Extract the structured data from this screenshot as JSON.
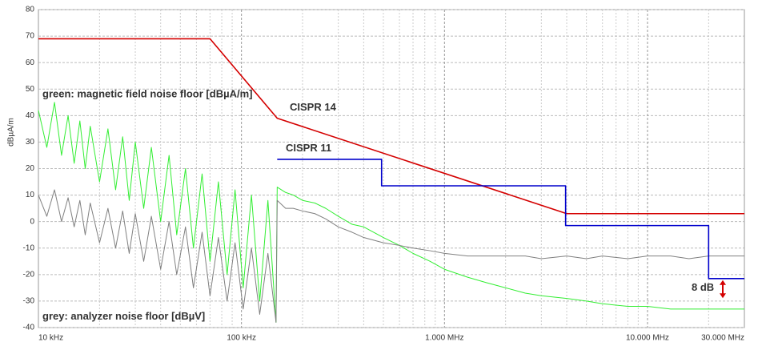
{
  "chart_data": {
    "type": "line",
    "y_label": "dBµA/m",
    "xscale": "log",
    "xlim": [
      10,
      30000
    ],
    "xticks": [
      {
        "value": 10,
        "label": "10 kHz"
      },
      {
        "value": 100,
        "label": "100 kHz"
      },
      {
        "value": 1000,
        "label": "1.000 MHz"
      },
      {
        "value": 10000,
        "label": "10.000 MHz"
      },
      {
        "value": 30000,
        "label": "30.000 MHz"
      }
    ],
    "ylim": [
      -40,
      80
    ],
    "yticks": [
      -40,
      -30,
      -20,
      -10,
      0,
      10,
      20,
      30,
      40,
      50,
      60,
      70,
      80
    ],
    "grid": true,
    "series": [
      {
        "color": "#33ee33",
        "x": [
          10,
          11,
          12,
          13,
          14,
          15,
          16,
          17,
          18,
          20,
          22,
          24,
          26,
          28,
          30,
          33,
          36,
          40,
          44,
          48,
          53,
          58,
          64,
          70,
          77,
          85,
          93,
          102,
          112,
          123,
          135,
          148,
          150,
          165,
          180,
          200,
          230,
          260,
          300,
          350,
          400,
          500,
          600,
          700,
          850,
          1000,
          1300,
          1600,
          2000,
          2500,
          3000,
          4000,
          5000,
          6000,
          8000,
          10000,
          13000,
          16000,
          20000,
          25000,
          30000
        ],
        "values": [
          42,
          28,
          45,
          25,
          40,
          22,
          38,
          20,
          36,
          15,
          35,
          12,
          32,
          8,
          30,
          5,
          28,
          0,
          25,
          -5,
          20,
          -10,
          18,
          -15,
          15,
          -20,
          12,
          -25,
          10,
          -30,
          8,
          -38,
          13,
          11,
          10,
          8,
          7,
          5,
          2,
          -1,
          -2,
          -6,
          -9,
          -12,
          -15,
          -18,
          -21,
          -23,
          -25,
          -27,
          -28,
          -29,
          -30,
          -31,
          -32,
          -32,
          -33,
          -33,
          -33,
          -33,
          -33
        ]
      },
      {
        "color": "#808080",
        "x": [
          10,
          11,
          12,
          13,
          14,
          15,
          16,
          17,
          18,
          20,
          22,
          24,
          26,
          28,
          30,
          33,
          36,
          40,
          44,
          48,
          53,
          58,
          64,
          70,
          77,
          85,
          93,
          102,
          112,
          123,
          135,
          148,
          150,
          165,
          180,
          200,
          230,
          260,
          300,
          350,
          400,
          500,
          600,
          700,
          850,
          1000,
          1300,
          1600,
          2000,
          2500,
          3000,
          4000,
          5000,
          6000,
          8000,
          10000,
          13000,
          16000,
          20000,
          25000,
          30000
        ],
        "values": [
          10,
          2,
          12,
          0,
          9,
          -2,
          8,
          -5,
          7,
          -8,
          5,
          -10,
          4,
          -12,
          3,
          -15,
          2,
          -18,
          0,
          -20,
          -2,
          -25,
          -4,
          -28,
          -6,
          -30,
          -8,
          -33,
          -10,
          -35,
          -12,
          -38,
          8,
          5,
          5,
          4,
          3,
          1,
          -2,
          -4,
          -6,
          -8,
          -9,
          -10,
          -11,
          -12,
          -13,
          -13,
          -13,
          -13,
          -14,
          -13,
          -14,
          -13,
          -14,
          -13,
          -13,
          -14,
          -13,
          -13,
          -13
        ]
      },
      {
        "name": "CISPR 14",
        "color": "#d40000",
        "x": [
          10,
          70,
          150,
          4000,
          30000
        ],
        "values": [
          69,
          69,
          39,
          3,
          3
        ]
      },
      {
        "name": "CISPR 11",
        "color": "#0000cc",
        "x": [
          150,
          490,
          490,
          3950,
          3950,
          20000,
          20000,
          30000
        ],
        "values": [
          23.5,
          23.5,
          13.5,
          13.5,
          -1.5,
          -1.5,
          -21.5,
          -21.5
        ]
      }
    ],
    "annotations": [
      {
        "text": "green: magnetic field noise floor [dBµA/m]",
        "color": "#33ee33"
      },
      {
        "text": "grey: analyzer noise floor [dBµV]",
        "color": "#999999"
      },
      {
        "text": "8 dB",
        "color": "#d40000"
      }
    ]
  }
}
